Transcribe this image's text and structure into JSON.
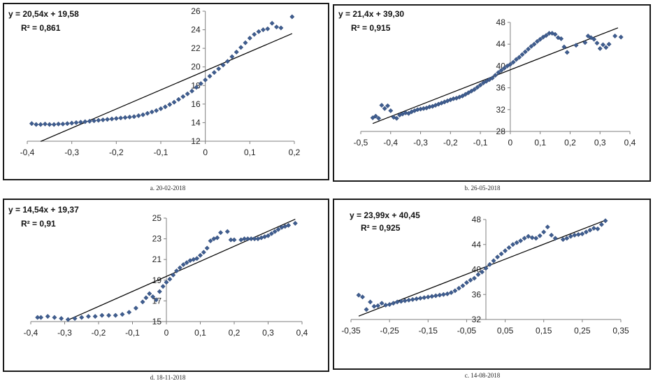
{
  "chart_data": [
    {
      "type": "scatter",
      "caption": "a. 20-02-2018",
      "equation": "y = 20,54x + 19,58",
      "r2": "R² = 0,861",
      "xlim": [
        -0.4,
        0.2
      ],
      "ylim": [
        12,
        26
      ],
      "x_ticks": [
        "-0,4",
        "-0,3",
        "-0,2",
        "-0,1",
        "0",
        "0,1",
        "0,2"
      ],
      "x_tick_values": [
        -0.4,
        -0.3,
        -0.2,
        -0.1,
        0,
        0.1,
        0.2
      ],
      "y_ticks": [
        "12",
        "14",
        "16",
        "18",
        "20",
        "22",
        "24",
        "26"
      ],
      "y_tick_values": [
        12,
        14,
        16,
        18,
        20,
        22,
        24,
        26
      ],
      "trend": {
        "slope": 20.54,
        "intercept": 19.58,
        "x_range": [
          -0.37,
          0.195
        ]
      },
      "points": [
        [
          -0.39,
          13.9
        ],
        [
          -0.38,
          13.8
        ],
        [
          -0.37,
          13.8
        ],
        [
          -0.36,
          13.85
        ],
        [
          -0.35,
          13.8
        ],
        [
          -0.34,
          13.8
        ],
        [
          -0.33,
          13.85
        ],
        [
          -0.32,
          13.85
        ],
        [
          -0.31,
          13.9
        ],
        [
          -0.3,
          13.95
        ],
        [
          -0.29,
          14.0
        ],
        [
          -0.28,
          14.05
        ],
        [
          -0.27,
          14.1
        ],
        [
          -0.26,
          14.15
        ],
        [
          -0.25,
          14.2
        ],
        [
          -0.24,
          14.25
        ],
        [
          -0.23,
          14.3
        ],
        [
          -0.22,
          14.35
        ],
        [
          -0.21,
          14.4
        ],
        [
          -0.2,
          14.45
        ],
        [
          -0.19,
          14.5
        ],
        [
          -0.18,
          14.55
        ],
        [
          -0.17,
          14.6
        ],
        [
          -0.16,
          14.65
        ],
        [
          -0.15,
          14.75
        ],
        [
          -0.14,
          14.85
        ],
        [
          -0.13,
          15.0
        ],
        [
          -0.12,
          15.15
        ],
        [
          -0.11,
          15.3
        ],
        [
          -0.1,
          15.5
        ],
        [
          -0.09,
          15.7
        ],
        [
          -0.08,
          15.95
        ],
        [
          -0.07,
          16.2
        ],
        [
          -0.06,
          16.5
        ],
        [
          -0.05,
          16.8
        ],
        [
          -0.04,
          17.1
        ],
        [
          -0.03,
          17.4
        ],
        [
          -0.02,
          17.8
        ],
        [
          -0.01,
          18.2
        ],
        [
          0.0,
          18.6
        ],
        [
          0.01,
          19.0
        ],
        [
          0.02,
          19.4
        ],
        [
          0.03,
          19.8
        ],
        [
          0.04,
          20.2
        ],
        [
          0.05,
          20.6
        ],
        [
          0.06,
          21.1
        ],
        [
          0.07,
          21.6
        ],
        [
          0.08,
          22.1
        ],
        [
          0.09,
          22.6
        ],
        [
          0.1,
          23.1
        ],
        [
          0.11,
          23.5
        ],
        [
          0.12,
          23.8
        ],
        [
          0.13,
          24.0
        ],
        [
          0.14,
          24.1
        ],
        [
          0.15,
          24.7
        ],
        [
          0.16,
          24.3
        ],
        [
          0.17,
          24.2
        ],
        [
          0.195,
          25.4
        ]
      ]
    },
    {
      "type": "scatter",
      "caption": "b. 26-05-2018",
      "equation": "y = 21,4x + 39,30",
      "r2": "R² = 0,915",
      "xlim": [
        -0.5,
        0.4
      ],
      "ylim": [
        28,
        48
      ],
      "x_ticks": [
        "-0,5",
        "-0,4",
        "-0,3",
        "-0,2",
        "-0,1",
        "0",
        "0,1",
        "0,2",
        "0,3",
        "0,4"
      ],
      "x_tick_values": [
        -0.5,
        -0.4,
        -0.3,
        -0.2,
        -0.1,
        0,
        0.1,
        0.2,
        0.3,
        0.4
      ],
      "y_ticks": [
        "28",
        "32",
        "36",
        "40",
        "44",
        "48"
      ],
      "y_tick_values": [
        28,
        32,
        36,
        40,
        44,
        48
      ],
      "trend": {
        "slope": 21.4,
        "intercept": 39.3,
        "x_range": [
          -0.46,
          0.36
        ]
      },
      "points": [
        [
          -0.46,
          30.5
        ],
        [
          -0.45,
          30.8
        ],
        [
          -0.44,
          30.4
        ],
        [
          -0.43,
          32.8
        ],
        [
          -0.42,
          32.2
        ],
        [
          -0.41,
          32.7
        ],
        [
          -0.4,
          31.8
        ],
        [
          -0.39,
          30.6
        ],
        [
          -0.38,
          30.4
        ],
        [
          -0.37,
          31.0
        ],
        [
          -0.36,
          31.2
        ],
        [
          -0.35,
          31.4
        ],
        [
          -0.34,
          31.3
        ],
        [
          -0.33,
          31.6
        ],
        [
          -0.32,
          31.8
        ],
        [
          -0.31,
          32.0
        ],
        [
          -0.3,
          32.1
        ],
        [
          -0.29,
          32.2
        ],
        [
          -0.28,
          32.3
        ],
        [
          -0.27,
          32.5
        ],
        [
          -0.26,
          32.6
        ],
        [
          -0.25,
          32.8
        ],
        [
          -0.24,
          33.0
        ],
        [
          -0.23,
          33.2
        ],
        [
          -0.22,
          33.4
        ],
        [
          -0.21,
          33.6
        ],
        [
          -0.2,
          33.8
        ],
        [
          -0.19,
          34.0
        ],
        [
          -0.18,
          34.1
        ],
        [
          -0.17,
          34.3
        ],
        [
          -0.16,
          34.5
        ],
        [
          -0.15,
          34.8
        ],
        [
          -0.14,
          35.1
        ],
        [
          -0.13,
          35.4
        ],
        [
          -0.12,
          35.7
        ],
        [
          -0.11,
          36.1
        ],
        [
          -0.1,
          36.5
        ],
        [
          -0.09,
          36.9
        ],
        [
          -0.08,
          37.2
        ],
        [
          -0.07,
          37.5
        ],
        [
          -0.06,
          37.8
        ],
        [
          -0.05,
          38.3
        ],
        [
          -0.04,
          38.8
        ],
        [
          -0.03,
          39.2
        ],
        [
          -0.02,
          39.6
        ],
        [
          -0.01,
          40.0
        ],
        [
          0.0,
          40.3
        ],
        [
          0.01,
          40.7
        ],
        [
          0.02,
          41.2
        ],
        [
          0.03,
          41.6
        ],
        [
          0.04,
          42.1
        ],
        [
          0.05,
          42.6
        ],
        [
          0.06,
          43.1
        ],
        [
          0.07,
          43.6
        ],
        [
          0.08,
          44.0
        ],
        [
          0.09,
          44.5
        ],
        [
          0.1,
          44.9
        ],
        [
          0.11,
          45.3
        ],
        [
          0.12,
          45.6
        ],
        [
          0.13,
          46.0
        ],
        [
          0.14,
          46.0
        ],
        [
          0.15,
          45.8
        ],
        [
          0.16,
          45.2
        ],
        [
          0.17,
          45.0
        ],
        [
          0.18,
          43.5
        ],
        [
          0.19,
          42.5
        ],
        [
          0.22,
          43.8
        ],
        [
          0.25,
          44.3
        ],
        [
          0.26,
          45.5
        ],
        [
          0.27,
          45.2
        ],
        [
          0.28,
          44.9
        ],
        [
          0.29,
          44.2
        ],
        [
          0.3,
          43.2
        ],
        [
          0.31,
          43.9
        ],
        [
          0.32,
          43.4
        ],
        [
          0.33,
          44.0
        ],
        [
          0.35,
          45.5
        ],
        [
          0.37,
          45.3
        ]
      ]
    },
    {
      "type": "scatter",
      "caption": "d. 18-11-2018",
      "equation": "y = 14,54x + 19,37",
      "r2": "R² = 0,91",
      "xlim": [
        -0.4,
        0.4
      ],
      "ylim": [
        15,
        25
      ],
      "x_ticks": [
        "-0,4",
        "-0,3",
        "-0,2",
        "-0,1",
        "0",
        "0,1",
        "0,2",
        "0,3",
        "0,4"
      ],
      "x_tick_values": [
        -0.4,
        -0.3,
        -0.2,
        -0.1,
        0,
        0.1,
        0.2,
        0.3,
        0.4
      ],
      "y_ticks": [
        "15",
        "17",
        "19",
        "21",
        "23",
        "25"
      ],
      "y_tick_values": [
        15,
        17,
        19,
        21,
        23,
        25
      ],
      "trend": {
        "slope": 14.54,
        "intercept": 19.37,
        "x_range": [
          -0.29,
          0.38
        ]
      },
      "points": [
        [
          -0.38,
          15.4
        ],
        [
          -0.37,
          15.4
        ],
        [
          -0.35,
          15.5
        ],
        [
          -0.33,
          15.4
        ],
        [
          -0.31,
          15.3
        ],
        [
          -0.29,
          15.2
        ],
        [
          -0.27,
          15.3
        ],
        [
          -0.25,
          15.4
        ],
        [
          -0.23,
          15.5
        ],
        [
          -0.21,
          15.5
        ],
        [
          -0.19,
          15.6
        ],
        [
          -0.17,
          15.6
        ],
        [
          -0.15,
          15.6
        ],
        [
          -0.13,
          15.7
        ],
        [
          -0.11,
          15.9
        ],
        [
          -0.09,
          16.3
        ],
        [
          -0.07,
          16.9
        ],
        [
          -0.06,
          17.3
        ],
        [
          -0.05,
          17.7
        ],
        [
          -0.04,
          17.4
        ],
        [
          -0.03,
          17.1
        ],
        [
          -0.02,
          17.9
        ],
        [
          -0.01,
          18.4
        ],
        [
          0.0,
          18.8
        ],
        [
          0.01,
          19.1
        ],
        [
          0.02,
          19.5
        ],
        [
          0.03,
          19.9
        ],
        [
          0.04,
          20.2
        ],
        [
          0.05,
          20.5
        ],
        [
          0.06,
          20.7
        ],
        [
          0.07,
          20.9
        ],
        [
          0.08,
          21.0
        ],
        [
          0.09,
          21.1
        ],
        [
          0.1,
          21.4
        ],
        [
          0.11,
          21.7
        ],
        [
          0.12,
          22.1
        ],
        [
          0.13,
          22.8
        ],
        [
          0.14,
          23.0
        ],
        [
          0.15,
          23.1
        ],
        [
          0.16,
          23.6
        ],
        [
          0.18,
          23.7
        ],
        [
          0.19,
          22.9
        ],
        [
          0.2,
          22.9
        ],
        [
          0.22,
          22.9
        ],
        [
          0.23,
          23.0
        ],
        [
          0.24,
          23.0
        ],
        [
          0.25,
          23.0
        ],
        [
          0.26,
          23.0
        ],
        [
          0.27,
          23.0
        ],
        [
          0.28,
          23.1
        ],
        [
          0.29,
          23.2
        ],
        [
          0.3,
          23.3
        ],
        [
          0.31,
          23.5
        ],
        [
          0.32,
          23.7
        ],
        [
          0.33,
          23.9
        ],
        [
          0.34,
          24.1
        ],
        [
          0.35,
          24.2
        ],
        [
          0.36,
          24.3
        ],
        [
          0.38,
          24.5
        ]
      ]
    },
    {
      "type": "scatter",
      "caption": "c. 14-08-2018",
      "equation": "y = 23,99x + 40,45",
      "r2": "R² = 0,925",
      "xlim": [
        -0.35,
        0.35
      ],
      "ylim": [
        32,
        48
      ],
      "x_ticks": [
        "-0,35",
        "-0,25",
        "-0,15",
        "-0,05",
        "0,05",
        "0,15",
        "0,25",
        "0,35"
      ],
      "x_tick_values": [
        -0.35,
        -0.25,
        -0.15,
        -0.05,
        0.05,
        0.15,
        0.25,
        0.35
      ],
      "y_ticks": [
        "32",
        "36",
        "40",
        "44",
        "48"
      ],
      "y_tick_values": [
        32,
        36,
        40,
        44,
        48
      ],
      "trend": {
        "slope": 23.99,
        "intercept": 40.45,
        "x_range": [
          -0.33,
          0.31
        ]
      },
      "points": [
        [
          -0.33,
          35.9
        ],
        [
          -0.32,
          35.6
        ],
        [
          -0.31,
          33.6
        ],
        [
          -0.3,
          34.8
        ],
        [
          -0.29,
          34.1
        ],
        [
          -0.28,
          34.2
        ],
        [
          -0.27,
          34.6
        ],
        [
          -0.26,
          34.3
        ],
        [
          -0.25,
          34.4
        ],
        [
          -0.24,
          34.6
        ],
        [
          -0.23,
          34.8
        ],
        [
          -0.22,
          34.9
        ],
        [
          -0.21,
          35.0
        ],
        [
          -0.2,
          35.1
        ],
        [
          -0.19,
          35.2
        ],
        [
          -0.18,
          35.3
        ],
        [
          -0.17,
          35.4
        ],
        [
          -0.16,
          35.5
        ],
        [
          -0.15,
          35.6
        ],
        [
          -0.14,
          35.7
        ],
        [
          -0.13,
          35.8
        ],
        [
          -0.12,
          35.9
        ],
        [
          -0.11,
          36.0
        ],
        [
          -0.1,
          36.1
        ],
        [
          -0.09,
          36.3
        ],
        [
          -0.08,
          36.6
        ],
        [
          -0.07,
          37.0
        ],
        [
          -0.06,
          37.4
        ],
        [
          -0.05,
          37.9
        ],
        [
          -0.04,
          38.3
        ],
        [
          -0.03,
          38.6
        ],
        [
          -0.02,
          39.2
        ],
        [
          -0.01,
          39.6
        ],
        [
          0.0,
          40.2
        ],
        [
          0.01,
          40.8
        ],
        [
          0.02,
          41.4
        ],
        [
          0.03,
          42.0
        ],
        [
          0.04,
          42.5
        ],
        [
          0.05,
          43.0
        ],
        [
          0.06,
          43.5
        ],
        [
          0.07,
          44.0
        ],
        [
          0.08,
          44.3
        ],
        [
          0.09,
          44.6
        ],
        [
          0.1,
          45.0
        ],
        [
          0.11,
          45.3
        ],
        [
          0.12,
          45.1
        ],
        [
          0.13,
          45.0
        ],
        [
          0.14,
          45.4
        ],
        [
          0.15,
          46.0
        ],
        [
          0.16,
          46.8
        ],
        [
          0.17,
          45.5
        ],
        [
          0.18,
          45.0
        ],
        [
          0.2,
          44.8
        ],
        [
          0.21,
          45.0
        ],
        [
          0.22,
          45.3
        ],
        [
          0.23,
          45.5
        ],
        [
          0.24,
          45.6
        ],
        [
          0.25,
          45.7
        ],
        [
          0.26,
          46.0
        ],
        [
          0.27,
          46.3
        ],
        [
          0.28,
          46.6
        ],
        [
          0.29,
          46.5
        ],
        [
          0.3,
          47.2
        ],
        [
          0.31,
          47.8
        ]
      ]
    }
  ]
}
